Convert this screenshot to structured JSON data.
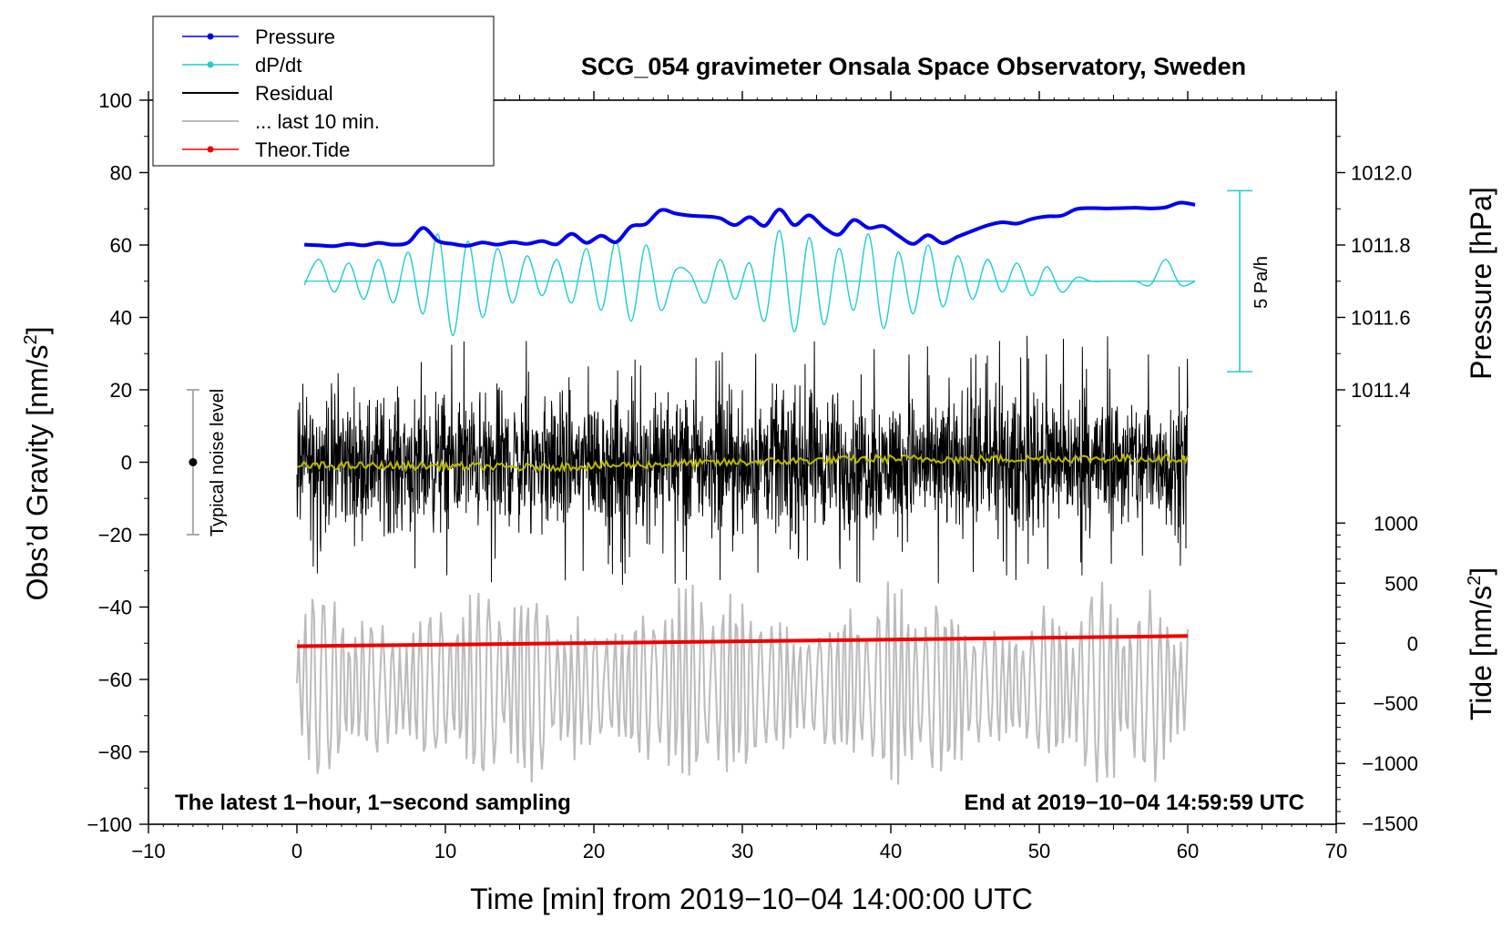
{
  "chart_data": {
    "type": "line",
    "title": "SCG_054 gravimeter Onsala Space Observatory, Sweden",
    "xlabel": "Time [min] from 2019−10−04 14:00:00 UTC",
    "ylabel_left": "Obs’d Gravity [nm/s",
    "ylabel_left_sup": "2",
    "ylabel_left_tail": "]",
    "ylabel_right_pressure": "Pressure [hPa]",
    "ylabel_right_tide": "Tide [nm/s",
    "ylabel_right_tide_sup": "2",
    "ylabel_right_tide_tail": "]",
    "xlim": [
      -10,
      70
    ],
    "ylim_left": [
      -100,
      100
    ],
    "x_ticks": [
      {
        "value": -10,
        "label": "−10"
      },
      {
        "value": 0,
        "label": "0"
      },
      {
        "value": 10,
        "label": "10"
      },
      {
        "value": 20,
        "label": "20"
      },
      {
        "value": 30,
        "label": "30"
      },
      {
        "value": 40,
        "label": "40"
      },
      {
        "value": 50,
        "label": "50"
      },
      {
        "value": 60,
        "label": "60"
      },
      {
        "value": 70,
        "label": "70"
      }
    ],
    "y_ticks_left": [
      {
        "value": 100,
        "label": "100"
      },
      {
        "value": 80,
        "label": "80"
      },
      {
        "value": 60,
        "label": "60"
      },
      {
        "value": 40,
        "label": "40"
      },
      {
        "value": 20,
        "label": "20"
      },
      {
        "value": 0,
        "label": "0"
      },
      {
        "value": -20,
        "label": "−20"
      },
      {
        "value": -40,
        "label": "−40"
      },
      {
        "value": -60,
        "label": "−60"
      },
      {
        "value": -80,
        "label": "−80"
      },
      {
        "value": -100,
        "label": "−100"
      }
    ],
    "pressure_axis": {
      "map": {
        "hpa_a": 1011.4,
        "g_a": 20,
        "hpa_b": 1012.0,
        "g_b": 80
      },
      "ticks": [
        {
          "value": 1012.0,
          "label": "1012.0"
        },
        {
          "value": 1011.8,
          "label": "1011.8"
        },
        {
          "value": 1011.6,
          "label": "1011.6"
        },
        {
          "value": 1011.4,
          "label": "1011.4"
        }
      ]
    },
    "tide_axis": {
      "map": {
        "tide_a": 0,
        "g_a": -50,
        "tide_b": 1000,
        "g_b": -16.8
      },
      "ticks": [
        {
          "value": 1000,
          "label": "1000"
        },
        {
          "value": 500,
          "label": "500"
        },
        {
          "value": 0,
          "label": "0"
        },
        {
          "value": -500,
          "label": "−500"
        },
        {
          "value": -1000,
          "label": "−1000"
        },
        {
          "value": -1500,
          "label": "−1500"
        }
      ]
    },
    "series": [
      {
        "name": "Pressure",
        "color": "#0000ee",
        "axis": "pressure_hpa",
        "x": [
          0.5,
          1.5,
          2.5,
          3.5,
          4.5,
          5.5,
          6.5,
          7.5,
          8.5,
          9.5,
          10.5,
          11.5,
          12.5,
          13.5,
          14.5,
          15.5,
          16.5,
          17.5,
          18.5,
          19.5,
          20.5,
          21.5,
          22.5,
          23.5,
          24.5,
          25.5,
          26.5,
          27.5,
          28.5,
          29.5,
          30.5,
          31.5,
          32.5,
          33.5,
          34.5,
          35.5,
          36.5,
          37.5,
          38.5,
          39.5,
          40.5,
          41.5,
          42.5,
          43.5,
          44.5,
          45.5,
          46.5,
          47.5,
          48.5,
          49.5,
          50.5,
          51.5,
          52.5,
          53.5,
          54.5,
          55.5,
          56.5,
          57.5,
          58.5,
          59.5,
          60.5
        ],
        "y": [
          1011.801,
          1011.799,
          1011.797,
          1011.803,
          1011.799,
          1011.806,
          1011.801,
          1011.807,
          1011.847,
          1011.811,
          1011.803,
          1011.798,
          1011.807,
          1011.801,
          1011.808,
          1011.803,
          1011.811,
          1011.802,
          1011.831,
          1011.806,
          1011.826,
          1011.808,
          1011.851,
          1011.858,
          1011.896,
          1011.887,
          1011.881,
          1011.879,
          1011.874,
          1011.855,
          1011.877,
          1011.853,
          1011.898,
          1011.855,
          1011.882,
          1011.848,
          1011.829,
          1011.869,
          1011.847,
          1011.852,
          1011.826,
          1011.803,
          1011.827,
          1011.805,
          1011.823,
          1011.839,
          1011.854,
          1011.863,
          1011.859,
          1011.872,
          1011.879,
          1011.881,
          1011.899,
          1011.902,
          1011.901,
          1011.902,
          1011.903,
          1011.901,
          1011.904,
          1011.917,
          1011.911
        ]
      },
      {
        "name": "dP/dt",
        "color": "#22cccc",
        "axis": "gravity_offset",
        "baseline": 50,
        "x": [
          0.5,
          1.5,
          2.5,
          3.5,
          4.5,
          5.5,
          6.5,
          7.5,
          8.5,
          9.5,
          10.5,
          11.5,
          12.5,
          13.5,
          14.5,
          15.5,
          16.5,
          17.5,
          18.5,
          19.5,
          20.5,
          21.5,
          22.5,
          23.5,
          24.5,
          25.5,
          26.5,
          27.5,
          28.5,
          29.5,
          30.5,
          31.5,
          32.5,
          33.5,
          34.5,
          35.5,
          36.5,
          37.5,
          38.5,
          39.5,
          40.5,
          41.5,
          42.5,
          43.5,
          44.5,
          45.5,
          46.5,
          47.5,
          48.5,
          49.5,
          50.5,
          51.5,
          52.5,
          53.5,
          54.5,
          55.5,
          56.5,
          57.5,
          58.5,
          59.5,
          60.5
        ],
        "y": [
          49,
          56,
          47,
          55,
          45,
          56,
          44,
          58,
          41,
          63,
          35,
          61,
          40,
          59,
          44,
          57,
          46,
          56,
          44,
          59,
          42,
          61,
          39,
          60,
          42,
          53,
          52,
          44,
          56,
          45,
          55,
          39,
          64,
          36,
          62,
          38,
          59,
          42,
          63,
          37,
          58,
          41,
          60,
          43,
          57,
          45,
          56,
          47,
          55,
          46,
          54,
          47,
          51,
          50,
          50,
          50,
          50,
          49,
          56,
          49,
          50
        ]
      },
      {
        "name": "Residual",
        "color": "#000000",
        "axis": "gravity",
        "x_range": [
          0,
          60
        ],
        "amplitude_range": [
          -34,
          35
        ],
        "spike_x": [
          0.3,
          1.2,
          2.6,
          4.4,
          6.0,
          8.8,
          9.3,
          11.0,
          12.8,
          14.2,
          15.9,
          17.4,
          19.5,
          20.8,
          22.3,
          24.7,
          26.8,
          28.2,
          30.1,
          31.5,
          33.2,
          35.0,
          36.9,
          38.4,
          40.2,
          41.7,
          43.2,
          44.1,
          45.8,
          47.0,
          48.7,
          50.2,
          52.0,
          53.3,
          55.1,
          56.8,
          58.4,
          59.6
        ]
      },
      {
        "name": "Residual (running mean)",
        "color": "#bbbb00",
        "axis": "gravity",
        "x": [
          0,
          5,
          10,
          15,
          20,
          25,
          30,
          35,
          40,
          45,
          50,
          55,
          60
        ],
        "y": [
          -1,
          -1,
          -1,
          -1.5,
          -1,
          -0.5,
          0,
          0.5,
          1,
          0.8,
          1,
          1,
          1
        ]
      },
      {
        "name": "... last 10 min.",
        "color": "#bbbbbb",
        "axis": "gravity",
        "x_range": [
          0,
          60
        ],
        "y_range": [
          -89,
          -33
        ],
        "center": -62
      },
      {
        "name": "Theor.Tide",
        "color": "#ee0000",
        "axis": "tide_nm",
        "x": [
          0,
          10,
          20,
          30,
          40,
          50,
          60
        ],
        "y": [
          -25,
          -12,
          2,
          16,
          31,
          45,
          60
        ]
      }
    ],
    "legend": {
      "position": "top-left",
      "entries": [
        {
          "label": "Pressure",
          "color": "#0000ee",
          "style": "line-marker"
        },
        {
          "label": "dP/dt",
          "color": "#22cccc",
          "style": "line-marker"
        },
        {
          "label": "Residual",
          "color": "#000000",
          "style": "line"
        },
        {
          "label": "... last 10 min.",
          "color": "#bbbbbb",
          "style": "line"
        },
        {
          "label": "Theor.Tide",
          "color": "#ee0000",
          "style": "line-marker"
        }
      ]
    },
    "annotations": {
      "noise_level": {
        "label": "Typical noise level",
        "x": -7,
        "y_low": -20,
        "y_high": 20
      },
      "scale_bar": {
        "label": "5 Pa/h",
        "x": 63.5,
        "y_low": 25,
        "y_high": 75
      },
      "bottom_left": "The latest 1−hour, 1−second sampling",
      "bottom_right": "End at 2019−10−04 14:59:59 UTC"
    }
  }
}
